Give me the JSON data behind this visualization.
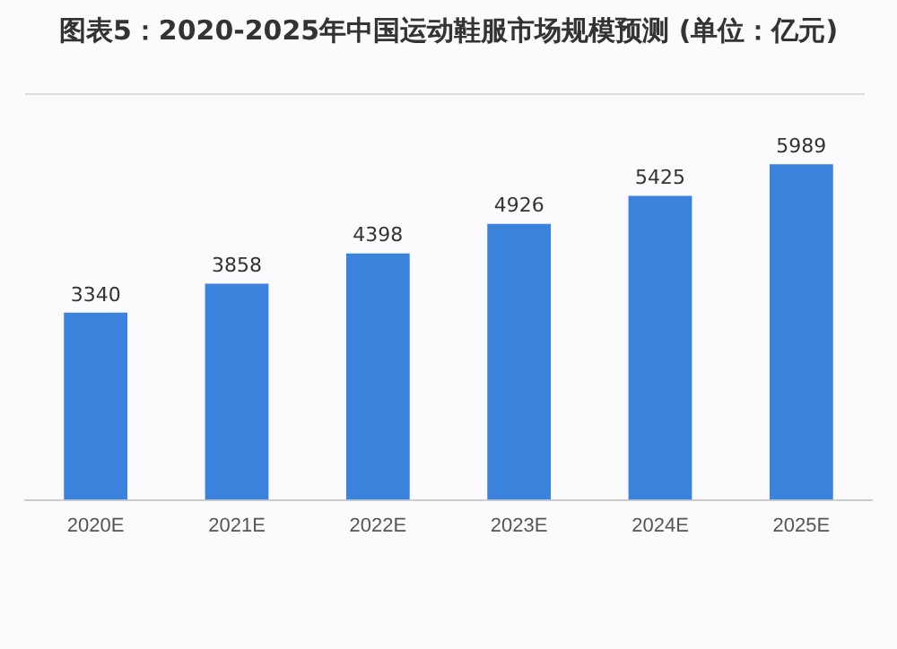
{
  "chart_data": {
    "type": "bar",
    "title": "图表5：2020-2025年中国运动鞋服市场规模预测 (单位：亿元)",
    "categories": [
      "2020E",
      "2021E",
      "2022E",
      "2023E",
      "2024E",
      "2025E"
    ],
    "values": [
      3340,
      3858,
      4398,
      4926,
      5425,
      5989
    ],
    "color": "#3b82dc",
    "data_labels": true,
    "tick_labels": "x",
    "grid": false,
    "legend": false
  }
}
